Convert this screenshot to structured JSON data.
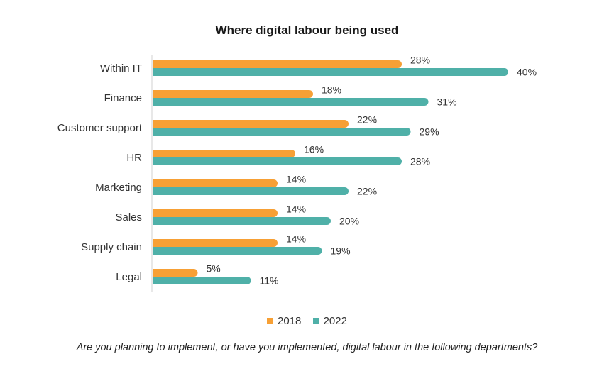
{
  "chart_data": {
    "type": "bar",
    "orientation": "horizontal",
    "title": "Where digital labour being used",
    "categories": [
      "Within IT",
      "Finance",
      "Customer support",
      "HR",
      "Marketing",
      "Sales",
      "Supply chain",
      "Legal"
    ],
    "series": [
      {
        "name": "2018",
        "color": "#f7a035",
        "values": [
          28,
          18,
          22,
          16,
          14,
          14,
          14,
          5
        ]
      },
      {
        "name": "2022",
        "color": "#4fb0a8",
        "values": [
          40,
          31,
          29,
          28,
          22,
          20,
          19,
          11
        ]
      }
    ],
    "value_suffix": "%",
    "xlim": [
      0,
      40
    ],
    "legend_position": "bottom-center",
    "footnote": "Are you planning to implement, or have you implemented, digital labour in the following departments?"
  }
}
